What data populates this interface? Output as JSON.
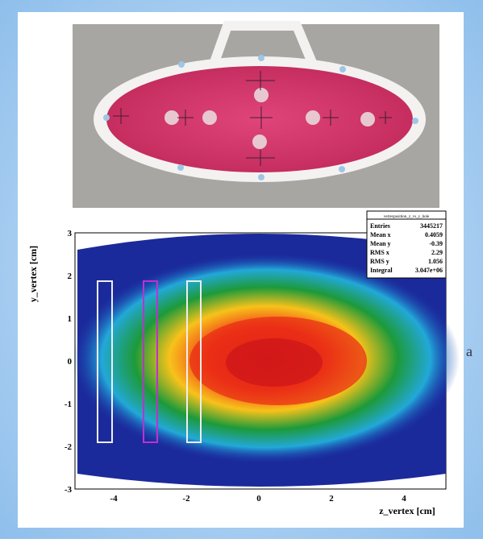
{
  "plot": {
    "x_axis_label": "z_vertex [cm]",
    "y_axis_label": "y_vertex [cm]",
    "x_tick_labels": [
      "-4",
      "-2",
      "0",
      "2",
      "4"
    ],
    "y_tick_labels": [
      "3",
      "2",
      "1",
      "0",
      "-1",
      "-2",
      "-3"
    ],
    "stats": {
      "title": "vertexposition_z_vs_y_hole",
      "rows": [
        [
          "Entries",
          "3445217"
        ],
        [
          "Mean x",
          "0.4059"
        ],
        [
          "Mean y",
          "-0.39"
        ],
        [
          "RMS x",
          "2.29"
        ],
        [
          "RMS y",
          "1.056"
        ],
        [
          "Integral",
          "3.047e+06"
        ]
      ]
    }
  },
  "side_label": "a"
}
